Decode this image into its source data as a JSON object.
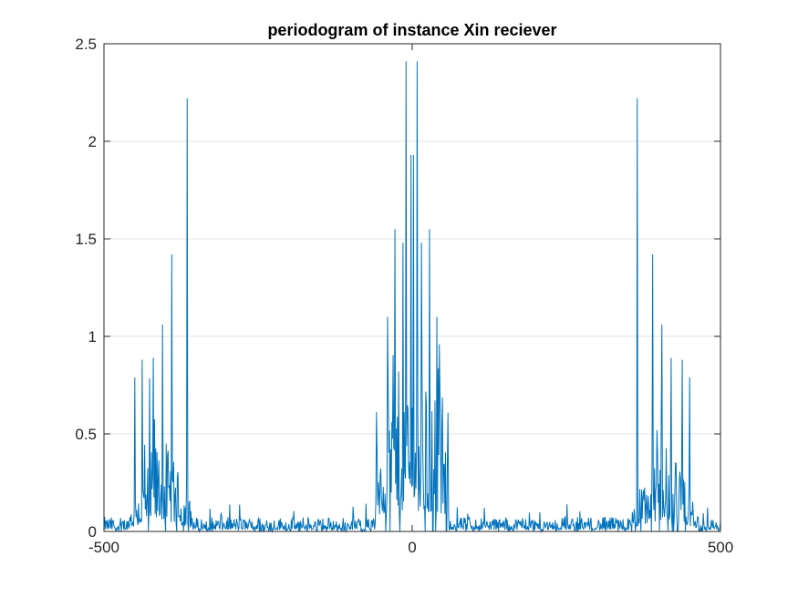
{
  "chart_data": {
    "type": "line",
    "title": "periodogram of instance Xin reciever",
    "xlabel": "",
    "ylabel": "",
    "xlim": [
      -500,
      500
    ],
    "ylim": [
      0,
      2.5
    ],
    "xticks": [
      -500,
      0,
      500
    ],
    "xtick_labels": [
      "-500",
      "0",
      "500"
    ],
    "yticks": [
      0,
      0.5,
      1,
      1.5,
      2,
      2.5
    ],
    "ytick_labels": [
      "0",
      "0.5",
      "1",
      "1.5",
      "2",
      "2.5"
    ],
    "grid": "horizontal",
    "legend": "none",
    "series_color": "#0072BD",
    "peaks": [
      {
        "x": -365,
        "y": 2.22
      },
      {
        "x": -390,
        "y": 1.42
      },
      {
        "x": -405,
        "y": 1.06
      },
      {
        "x": -420,
        "y": 0.89
      },
      {
        "x": -438,
        "y": 0.88
      },
      {
        "x": -450,
        "y": 0.79
      },
      {
        "x": -10,
        "y": 2.41
      },
      {
        "x": 8,
        "y": 2.41
      },
      {
        "x": -2,
        "y": 1.93
      },
      {
        "x": 2,
        "y": 1.93
      },
      {
        "x": -28,
        "y": 1.55
      },
      {
        "x": 28,
        "y": 1.55
      },
      {
        "x": -15,
        "y": 1.48
      },
      {
        "x": 15,
        "y": 1.48
      },
      {
        "x": -40,
        "y": 1.1
      },
      {
        "x": 40,
        "y": 1.1
      },
      {
        "x": 365,
        "y": 2.22
      },
      {
        "x": 390,
        "y": 1.42
      },
      {
        "x": 405,
        "y": 1.06
      },
      {
        "x": 420,
        "y": 0.89
      },
      {
        "x": 438,
        "y": 0.88
      },
      {
        "x": 450,
        "y": 0.79
      }
    ]
  }
}
